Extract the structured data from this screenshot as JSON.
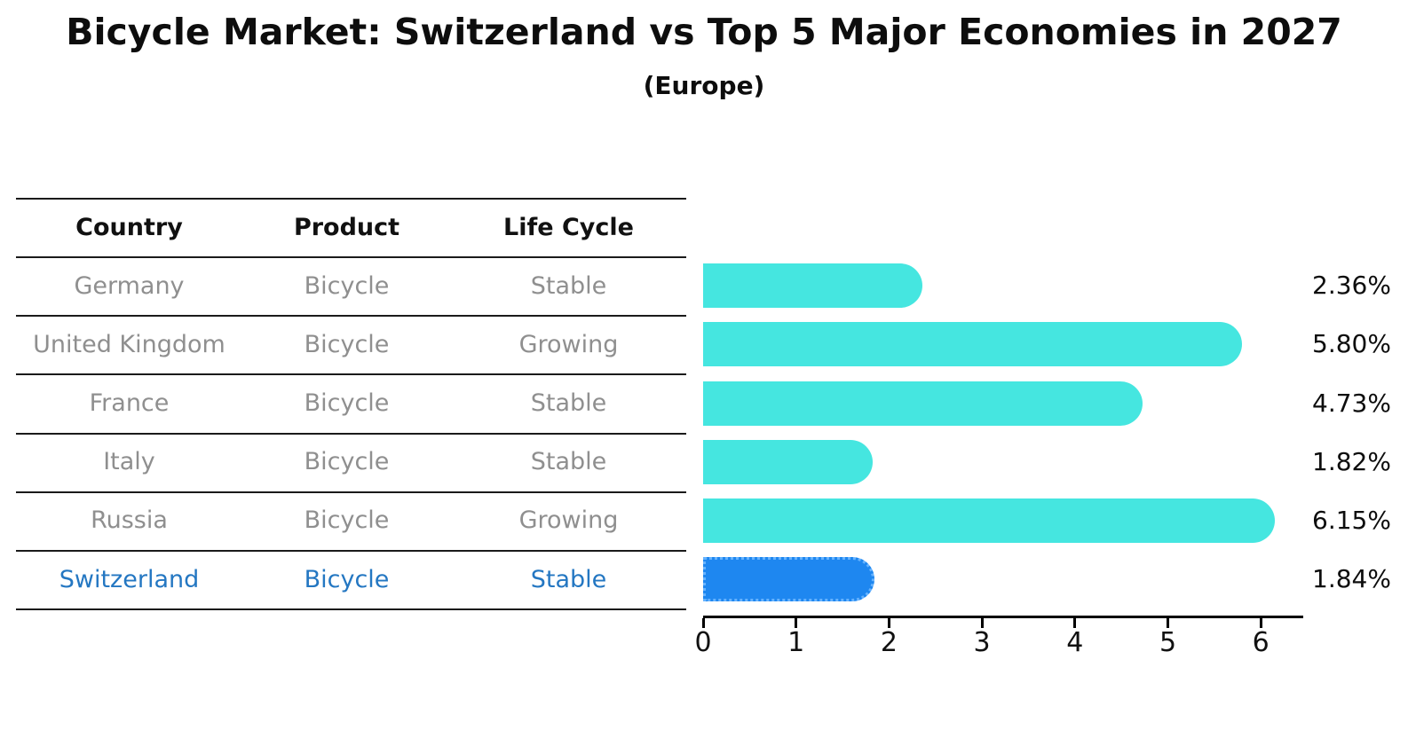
{
  "title": "Bicycle Market: Switzerland vs Top 5 Major Economies in 2027",
  "subtitle": "(Europe)",
  "table": {
    "headers": [
      "Country",
      "Product",
      "Life Cycle"
    ],
    "rows": [
      {
        "country": "Germany",
        "product": "Bicycle",
        "life_cycle": "Stable",
        "highlighted": false
      },
      {
        "country": "United Kingdom",
        "product": "Bicycle",
        "life_cycle": "Growing",
        "highlighted": false
      },
      {
        "country": "France",
        "product": "Bicycle",
        "life_cycle": "Stable",
        "highlighted": false
      },
      {
        "country": "Italy",
        "product": "Bicycle",
        "life_cycle": "Stable",
        "highlighted": false
      },
      {
        "country": "Russia",
        "product": "Bicycle",
        "life_cycle": "Growing",
        "highlighted": false
      },
      {
        "country": "Switzerland",
        "product": "Bicycle",
        "life_cycle": "Stable",
        "highlighted": true
      }
    ]
  },
  "chart_data": {
    "type": "bar",
    "orientation": "horizontal",
    "title": "Bicycle Market: Switzerland vs Top 5 Major Economies in 2027",
    "subtitle": "(Europe)",
    "categories": [
      "Germany",
      "United Kingdom",
      "France",
      "Italy",
      "Russia",
      "Switzerland"
    ],
    "values": [
      2.36,
      5.8,
      4.73,
      1.82,
      6.15,
      1.84
    ],
    "value_labels": [
      "2.36%",
      "5.80%",
      "4.73%",
      "1.82%",
      "6.15%",
      "1.84%"
    ],
    "x_ticks": [
      0,
      1,
      2,
      3,
      4,
      5,
      6
    ],
    "xlim": [
      0,
      6.45
    ],
    "highlight_index": 5,
    "grid": false,
    "legend": false
  },
  "colors": {
    "bar": "#45E6E0",
    "highlight_bar": "#1E87F0",
    "highlight_border": "#66B3FF",
    "highlight_text": "#2477C2",
    "muted_text": "#8F8F8F",
    "heading_text": "#111111",
    "axis": "#000000"
  }
}
